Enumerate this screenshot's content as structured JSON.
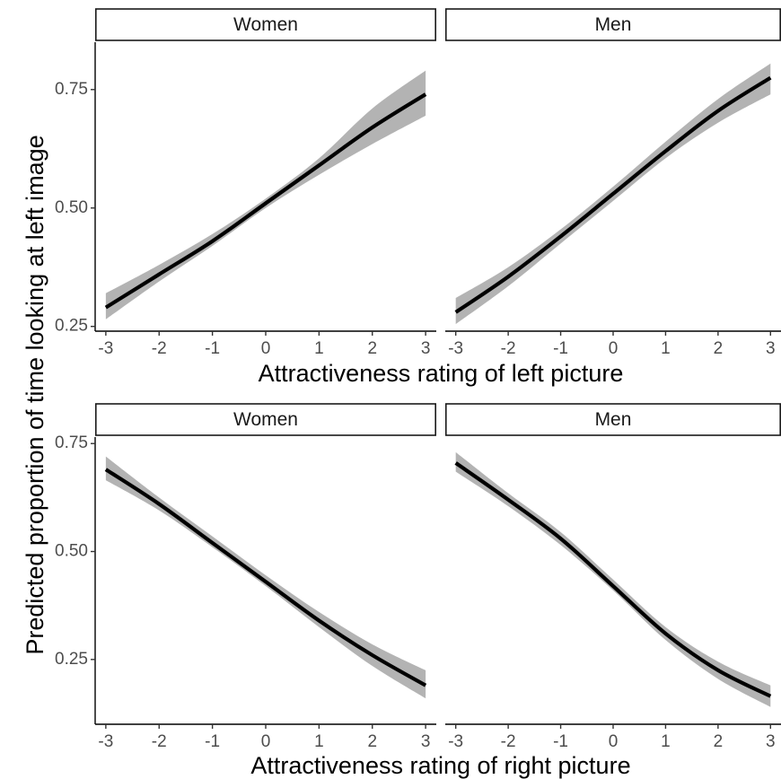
{
  "chart_data": {
    "type": "line",
    "y_title": "Predicted proportion of time looking at left image",
    "rows": [
      {
        "xlabel": "Attractiveness rating of left picture",
        "panels": [
          {
            "strip": "Women",
            "x": [
              -3,
              -2,
              -1,
              0,
              1,
              2,
              3
            ],
            "y": [
              0.29,
              0.36,
              0.43,
              0.51,
              0.59,
              0.67,
              0.74
            ],
            "lower": [
              0.265,
              0.345,
              0.42,
              0.5,
              0.57,
              0.635,
              0.695
            ],
            "upper": [
              0.32,
              0.38,
              0.445,
              0.52,
              0.605,
              0.71,
              0.79
            ]
          },
          {
            "strip": "Men",
            "x": [
              -3,
              -2,
              -1,
              0,
              1,
              2,
              3
            ],
            "y": [
              0.28,
              0.355,
              0.44,
              0.53,
              0.62,
              0.705,
              0.775
            ],
            "lower": [
              0.255,
              0.335,
              0.425,
              0.515,
              0.605,
              0.68,
              0.74
            ],
            "upper": [
              0.31,
              0.375,
              0.455,
              0.545,
              0.64,
              0.73,
              0.805
            ]
          }
        ]
      },
      {
        "xlabel": "Attractiveness rating of right picture",
        "panels": [
          {
            "strip": "Women",
            "x": [
              -3,
              -2,
              -1,
              0,
              1,
              2,
              3
            ],
            "y": [
              0.69,
              0.61,
              0.52,
              0.43,
              0.34,
              0.26,
              0.19
            ],
            "lower": [
              0.665,
              0.595,
              0.51,
              0.42,
              0.325,
              0.235,
              0.16
            ],
            "upper": [
              0.72,
              0.625,
              0.535,
              0.445,
              0.36,
              0.285,
              0.225
            ]
          },
          {
            "strip": "Men",
            "x": [
              -3,
              -2,
              -1,
              0,
              1,
              2,
              3
            ],
            "y": [
              0.705,
              0.62,
              0.53,
              0.42,
              0.31,
              0.225,
              0.165
            ],
            "lower": [
              0.685,
              0.605,
              0.515,
              0.41,
              0.295,
              0.205,
              0.14
            ],
            "upper": [
              0.73,
              0.635,
              0.545,
              0.435,
              0.325,
              0.245,
              0.19
            ]
          }
        ]
      }
    ],
    "xlim": [
      -3.2,
      3.2
    ],
    "x_ticks": [
      -3,
      -2,
      -1,
      0,
      1,
      2,
      3
    ],
    "x_tick_labels": [
      "-3",
      "-2",
      "-1",
      "0",
      "1",
      "2",
      "3"
    ],
    "y_ticks": [
      0.25,
      0.5,
      0.75
    ],
    "y_tick_labels": [
      "0.25",
      "0.50",
      "0.75"
    ],
    "row_ylims": [
      [
        0.24,
        0.85
      ],
      [
        0.1,
        0.765
      ]
    ],
    "band_color": "#b3b3b3",
    "line_color": "#000000"
  }
}
